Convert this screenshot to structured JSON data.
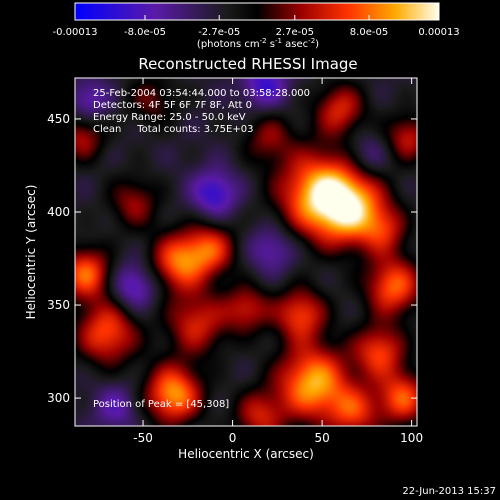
{
  "chart_data": {
    "type": "heatmap",
    "title": "Reconstructed RHESSI Image",
    "xlabel": "Heliocentric X (arcsec)",
    "ylabel": "Heliocentric Y (arcsec)",
    "xlim": [
      -88,
      103
    ],
    "ylim": [
      285,
      472
    ],
    "x_ticks": [
      -50,
      0,
      50,
      100
    ],
    "y_ticks": [
      300,
      350,
      400,
      450
    ],
    "colorbar": {
      "ticks": [
        "-0.00013",
        "-8.0e-05",
        "-2.7e-05",
        "2.7e-05",
        "8.0e-05",
        "0.00013"
      ],
      "tick_values": [
        -0.00013,
        -8e-05,
        -2.7e-05,
        2.7e-05,
        8e-05,
        0.00013
      ],
      "range": [
        -0.00013,
        0.00013
      ],
      "units_main": "(photons cm",
      "units_sup1": "-2",
      "units_mid": " s",
      "units_sup2": "-1",
      "units_tail": " asec",
      "units_sup3": "-2",
      "units_close": ")"
    },
    "info_lines": [
      "25-Feb-2004 03:54:44.000 to 03:58:28.000",
      "Detectors: 4F 5F 6F 7F 8F, Att 0",
      "Energy Range: 25.0 - 50.0 keV",
      "Clean     Total counts: 3.75E+03"
    ],
    "peak_text": "Position of Peak = [45,308]",
    "peak": [
      45,
      308
    ],
    "timestamp": "22-Jun-2013 15:37",
    "sources": [
      {
        "x": 45,
        "y": 308,
        "v": 1.0,
        "w": 14
      },
      {
        "x": 48,
        "y": 410,
        "v": 0.95,
        "w": 16
      },
      {
        "x": 66,
        "y": 402,
        "v": 0.9,
        "w": 14
      },
      {
        "x": -33,
        "y": 302,
        "v": 0.95,
        "w": 11
      },
      {
        "x": -70,
        "y": 335,
        "v": 0.75,
        "w": 12
      },
      {
        "x": -82,
        "y": 367,
        "v": 0.8,
        "w": 10
      },
      {
        "x": -30,
        "y": 373,
        "v": 0.8,
        "w": 11
      },
      {
        "x": -12,
        "y": 380,
        "v": 0.65,
        "w": 10
      },
      {
        "x": -20,
        "y": 340,
        "v": 0.6,
        "w": 12
      },
      {
        "x": 8,
        "y": 348,
        "v": 0.55,
        "w": 9
      },
      {
        "x": 38,
        "y": 345,
        "v": 0.7,
        "w": 10
      },
      {
        "x": 90,
        "y": 360,
        "v": 0.8,
        "w": 11
      },
      {
        "x": 82,
        "y": 325,
        "v": 0.7,
        "w": 10
      },
      {
        "x": 95,
        "y": 300,
        "v": 0.75,
        "w": 10
      },
      {
        "x": 68,
        "y": 292,
        "v": 0.6,
        "w": 10
      },
      {
        "x": 15,
        "y": 290,
        "v": 0.55,
        "w": 10
      },
      {
        "x": 60,
        "y": 455,
        "v": 0.6,
        "w": 10
      },
      {
        "x": 98,
        "y": 440,
        "v": 0.55,
        "w": 9
      },
      {
        "x": -55,
        "y": 405,
        "v": 0.45,
        "w": 10
      },
      {
        "x": -84,
        "y": 440,
        "v": 0.5,
        "w": 9
      },
      {
        "x": 20,
        "y": 440,
        "v": 0.4,
        "w": 10
      },
      {
        "x": 85,
        "y": 390,
        "v": 0.45,
        "w": 9
      },
      {
        "x": -45,
        "y": 460,
        "v": 0.35,
        "w": 10
      },
      {
        "x": -10,
        "y": 410,
        "v": -0.55,
        "w": 9
      },
      {
        "x": 18,
        "y": 468,
        "v": -0.5,
        "w": 9
      },
      {
        "x": -55,
        "y": 360,
        "v": -0.5,
        "w": 9
      },
      {
        "x": 22,
        "y": 380,
        "v": -0.4,
        "w": 9
      },
      {
        "x": -65,
        "y": 295,
        "v": -0.35,
        "w": 9
      },
      {
        "x": -80,
        "y": 460,
        "v": -0.4,
        "w": 8
      },
      {
        "x": 75,
        "y": 430,
        "v": -0.3,
        "w": 9
      }
    ]
  }
}
